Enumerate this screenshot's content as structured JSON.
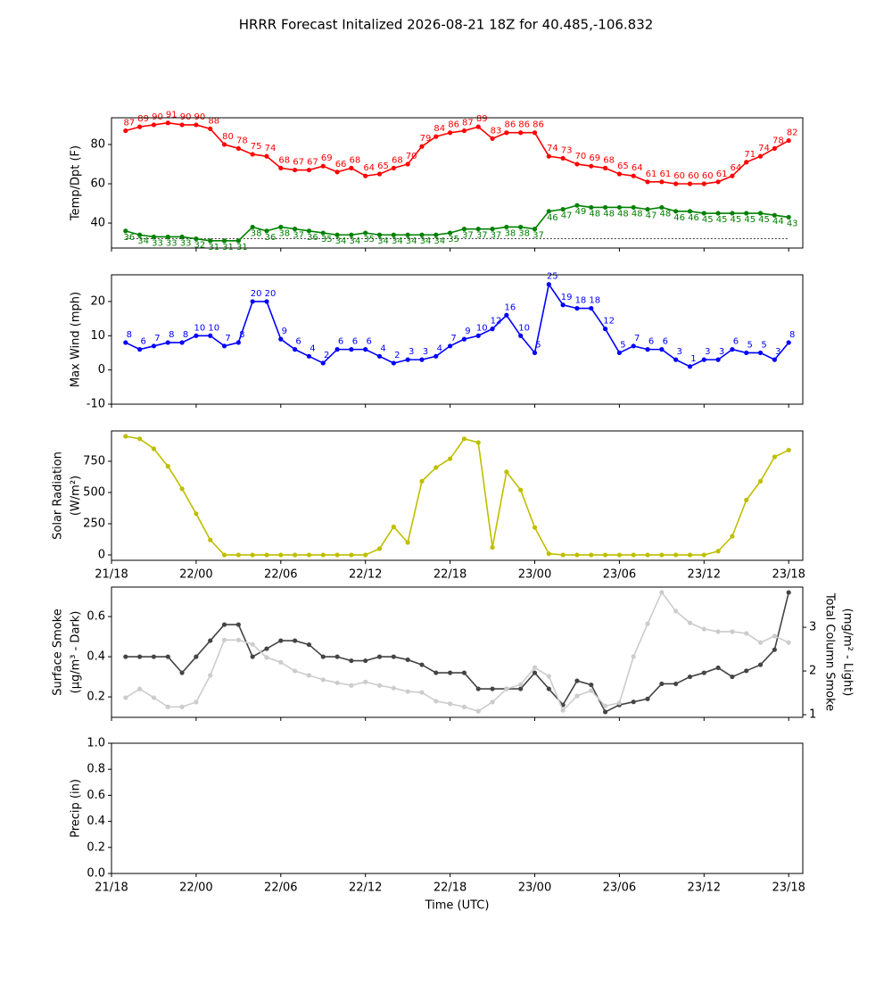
{
  "title": "HRRR Forecast Initalized 2026-08-21 18Z for 40.485,-106.832",
  "time_axis": {
    "label": "Time (UTC)",
    "x": [
      "21/19",
      "21/20",
      "21/21",
      "21/22",
      "21/23",
      "22/00",
      "22/01",
      "22/02",
      "22/03",
      "22/04",
      "22/05",
      "22/06",
      "22/07",
      "22/08",
      "22/09",
      "22/10",
      "22/11",
      "22/12",
      "22/13",
      "22/14",
      "22/15",
      "22/16",
      "22/17",
      "22/18",
      "22/19",
      "22/20",
      "22/21",
      "22/22",
      "22/23",
      "23/00",
      "23/01",
      "23/02",
      "23/03",
      "23/04",
      "23/05",
      "23/06",
      "23/07",
      "23/08",
      "23/09",
      "23/10",
      "23/11",
      "23/12",
      "23/13",
      "23/14",
      "23/15",
      "23/16",
      "23/17",
      "23/18"
    ],
    "xlim": [
      "21/18",
      "23/19"
    ],
    "xticks": [
      "21/18",
      "22/00",
      "22/06",
      "22/12",
      "22/18",
      "23/00",
      "23/06",
      "23/12",
      "23/18"
    ]
  },
  "chart_data": [
    {
      "type": "line",
      "ylabel": [
        "Temp/Dpt (F)"
      ],
      "ylim": [
        27.3,
        93.6
      ],
      "yticks": [
        40,
        60,
        80
      ],
      "reference_line": 32,
      "data_labels": true,
      "series": [
        {
          "name": "Temp",
          "color": "red",
          "label_position": "above",
          "values": [
            87,
            89,
            90,
            91,
            90,
            90,
            88,
            80,
            78,
            75,
            74,
            68,
            67,
            67,
            69,
            66,
            68,
            64,
            65,
            68,
            70,
            79,
            84,
            86,
            87,
            89,
            83,
            86,
            86,
            86,
            74,
            73,
            70,
            69,
            68,
            65,
            64,
            61,
            61,
            60,
            60,
            60,
            61,
            64,
            71,
            74,
            78,
            82
          ]
        },
        {
          "name": "Dpt",
          "color": "green",
          "label_position": "below",
          "values": [
            36,
            34,
            33,
            33,
            33,
            32,
            31,
            31,
            31,
            38,
            36,
            38,
            37,
            36,
            35,
            34,
            34,
            35,
            34,
            34,
            34,
            34,
            34,
            35,
            37,
            37,
            37,
            38,
            38,
            37,
            46,
            47,
            49,
            48,
            48,
            48,
            48,
            47,
            48,
            46,
            46,
            45,
            45,
            45,
            45,
            45,
            44,
            43
          ]
        }
      ]
    },
    {
      "type": "line",
      "ylabel": [
        "Max Wind (mph)"
      ],
      "ylim": [
        -10,
        27.8
      ],
      "yticks": [
        -10,
        0,
        10,
        20
      ],
      "data_labels": true,
      "series": [
        {
          "name": "Max Wind",
          "color": "blue",
          "label_position": "above",
          "values": [
            8,
            6,
            7,
            8,
            8,
            10,
            10,
            7,
            8,
            20,
            20,
            9,
            6,
            4,
            2,
            6,
            6,
            6,
            4,
            2,
            3,
            3,
            4,
            7,
            9,
            10,
            12,
            16,
            10,
            5,
            25,
            19,
            18,
            18,
            12,
            5,
            7,
            6,
            6,
            3,
            1,
            3,
            3,
            6,
            5,
            5,
            3,
            8
          ]
        }
      ]
    },
    {
      "type": "line",
      "ylabel": [
        "Solar Radiation",
        "(W/m²)"
      ],
      "ylim": [
        -43,
        993
      ],
      "yticks": [
        0,
        250,
        500,
        750
      ],
      "xticklabels": true,
      "series": [
        {
          "name": "Solar Radiation",
          "color": "#bfbf00",
          "values": [
            950,
            930,
            850,
            710,
            530,
            330,
            120,
            0,
            0,
            0,
            0,
            0,
            0,
            0,
            0,
            0,
            0,
            0,
            50,
            225,
            100,
            590,
            700,
            770,
            930,
            900,
            60,
            665,
            520,
            220,
            10,
            0,
            0,
            0,
            0,
            0,
            0,
            0,
            0,
            0,
            0,
            0,
            30,
            150,
            440,
            590,
            785,
            840
          ]
        }
      ]
    },
    {
      "type": "line",
      "ylabel": [
        "Surface Smoke",
        "(μg/m³ - Dark)"
      ],
      "y2label": [
        "Total Column Smoke",
        "(mg/m² - Light)"
      ],
      "ylim": [
        0.098,
        0.747
      ],
      "yticks": [
        0.2,
        0.4,
        0.6
      ],
      "y2lim": [
        0.94,
        3.92
      ],
      "y2ticks": [
        1,
        2,
        3
      ],
      "series": [
        {
          "name": "Surface Smoke",
          "color": "#444444",
          "values": [
            0.4,
            0.4,
            0.4,
            0.4,
            0.32,
            0.4,
            0.48,
            0.56,
            0.56,
            0.4,
            0.44,
            0.48,
            0.48,
            0.46,
            0.4,
            0.4,
            0.38,
            0.38,
            0.4,
            0.4,
            0.385,
            0.36,
            0.32,
            0.32,
            0.32,
            0.24,
            0.24,
            0.24,
            0.24,
            0.32,
            0.24,
            0.16,
            0.28,
            0.26,
            0.125,
            0.16,
            0.175,
            0.19,
            0.265,
            0.265,
            0.3,
            0.32,
            0.345,
            0.3,
            0.33,
            0.36,
            0.435,
            0.72
          ]
        },
        {
          "name": "Total Column Smoke",
          "color": "#cccccc",
          "axis": "y2",
          "values": [
            1.39,
            1.59,
            1.39,
            1.18,
            1.18,
            1.29,
            1.9,
            2.71,
            2.71,
            2.61,
            2.31,
            2.2,
            2.0,
            1.9,
            1.8,
            1.73,
            1.67,
            1.75,
            1.67,
            1.61,
            1.53,
            1.51,
            1.31,
            1.25,
            1.18,
            1.08,
            1.29,
            1.59,
            1.69,
            2.08,
            1.88,
            1.1,
            1.43,
            1.55,
            1.2,
            1.27,
            2.33,
            3.08,
            3.8,
            3.37,
            3.1,
            2.96,
            2.9,
            2.9,
            2.86,
            2.65,
            2.8,
            2.65
          ]
        }
      ]
    },
    {
      "type": "line",
      "ylabel": [
        "Precip (in)"
      ],
      "ylim": [
        0,
        1
      ],
      "xticklabels": true,
      "show_xlabel": true,
      "yticks": [
        {
          "value": 0,
          "label": "0.0"
        },
        0.2,
        0.4,
        0.6,
        0.8,
        {
          "value": 1,
          "label": "1.0"
        }
      ],
      "series": []
    }
  ]
}
